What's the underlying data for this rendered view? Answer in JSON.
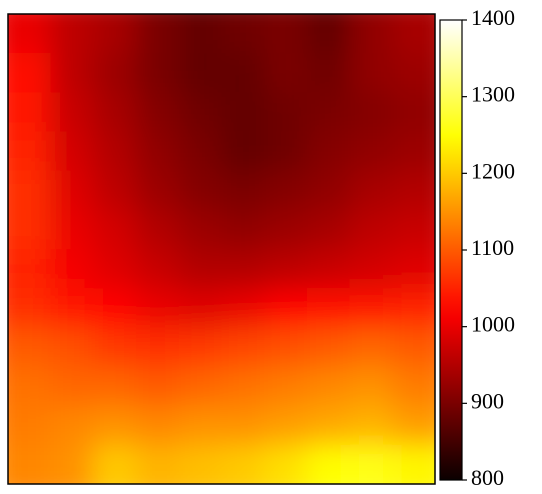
{
  "chart_data": {
    "type": "heatmap",
    "colormap": "hot",
    "z": [
      [
        1000,
        960,
        940,
        900,
        880,
        890,
        900,
        880,
        920,
        940
      ],
      [
        1030,
        960,
        930,
        900,
        880,
        880,
        900,
        890,
        920,
        930
      ],
      [
        1040,
        970,
        940,
        910,
        890,
        880,
        890,
        900,
        910,
        920
      ],
      [
        1050,
        980,
        950,
        920,
        900,
        880,
        890,
        910,
        920,
        930
      ],
      [
        1060,
        990,
        960,
        930,
        910,
        900,
        910,
        920,
        940,
        950
      ],
      [
        1060,
        1000,
        980,
        950,
        930,
        920,
        930,
        940,
        960,
        970
      ],
      [
        1050,
        1010,
        990,
        970,
        950,
        950,
        960,
        970,
        980,
        990
      ],
      [
        1060,
        1040,
        1020,
        1000,
        990,
        1000,
        1020,
        1030,
        1040,
        1050
      ],
      [
        1100,
        1090,
        1070,
        1060,
        1070,
        1080,
        1090,
        1100,
        1110,
        1100
      ],
      [
        1120,
        1110,
        1110,
        1100,
        1110,
        1120,
        1130,
        1140,
        1150,
        1130
      ],
      [
        1130,
        1140,
        1150,
        1140,
        1150,
        1150,
        1160,
        1170,
        1180,
        1160
      ],
      [
        1140,
        1150,
        1200,
        1180,
        1190,
        1200,
        1220,
        1250,
        1260,
        1240
      ]
    ],
    "colorbar": {
      "lim": [
        800,
        1400
      ],
      "ticks": [
        800,
        900,
        1000,
        1100,
        1200,
        1300,
        1400
      ]
    }
  }
}
